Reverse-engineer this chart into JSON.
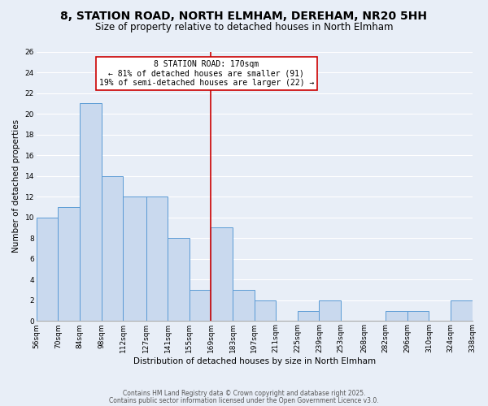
{
  "title": "8, STATION ROAD, NORTH ELMHAM, DEREHAM, NR20 5HH",
  "subtitle": "Size of property relative to detached houses in North Elmham",
  "xlabel": "Distribution of detached houses by size in North Elmham",
  "ylabel": "Number of detached properties",
  "bar_color": "#c9d9ee",
  "bar_edge_color": "#5b9bd5",
  "background_color": "#e8eef7",
  "grid_color": "#ffffff",
  "vline_color": "#cc0000",
  "vline_x": 169,
  "annotation_text": "8 STATION ROAD: 170sqm\n← 81% of detached houses are smaller (91)\n19% of semi-detached houses are larger (22) →",
  "annotation_box_color": "#ffffff",
  "annotation_box_edge_color": "#cc0000",
  "bins": [
    56,
    70,
    84,
    98,
    112,
    127,
    141,
    155,
    169,
    183,
    197,
    211,
    225,
    239,
    253,
    268,
    282,
    296,
    310,
    324,
    338
  ],
  "bin_labels": [
    "56sqm",
    "70sqm",
    "84sqm",
    "98sqm",
    "112sqm",
    "127sqm",
    "141sqm",
    "155sqm",
    "169sqm",
    "183sqm",
    "197sqm",
    "211sqm",
    "225sqm",
    "239sqm",
    "253sqm",
    "268sqm",
    "282sqm",
    "296sqm",
    "310sqm",
    "324sqm",
    "338sqm"
  ],
  "counts": [
    10,
    11,
    21,
    14,
    12,
    12,
    8,
    3,
    9,
    3,
    2,
    0,
    1,
    2,
    0,
    0,
    1,
    1,
    0,
    2
  ],
  "ylim": [
    0,
    26
  ],
  "yticks": [
    0,
    2,
    4,
    6,
    8,
    10,
    12,
    14,
    16,
    18,
    20,
    22,
    24,
    26
  ],
  "footer1": "Contains HM Land Registry data © Crown copyright and database right 2025.",
  "footer2": "Contains public sector information licensed under the Open Government Licence v3.0.",
  "title_fontsize": 10,
  "subtitle_fontsize": 8.5,
  "axis_label_fontsize": 7.5,
  "tick_fontsize": 6.5,
  "annotation_fontsize": 7,
  "footer_fontsize": 5.5
}
